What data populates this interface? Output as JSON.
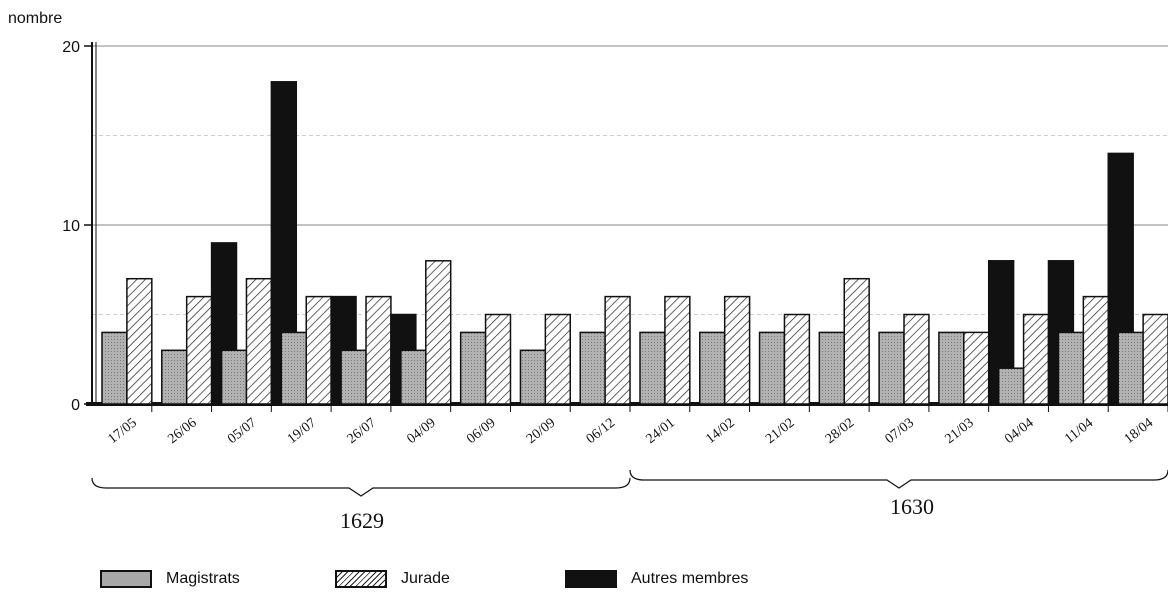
{
  "chart_data": {
    "type": "bar",
    "ylabel": "nombre",
    "ylim": [
      0,
      20
    ],
    "yticks": [
      "0",
      "10",
      "20"
    ],
    "categories": [
      "17/05",
      "26/06",
      "05/07",
      "19/07",
      "26/07",
      "04/09",
      "06/09",
      "20/09",
      "06/12",
      "24/01",
      "14/02",
      "21/02",
      "28/02",
      "07/03",
      "21/03",
      "04/04",
      "11/04",
      "18/04"
    ],
    "year_groups": [
      {
        "label": "1629",
        "from": 0,
        "to": 8
      },
      {
        "label": "1630",
        "from": 9,
        "to": 17
      }
    ],
    "series": [
      {
        "name": "Magistrats",
        "values": [
          4,
          3,
          3,
          4,
          3,
          3,
          4,
          3,
          4,
          4,
          4,
          4,
          4,
          4,
          4,
          2,
          4,
          4
        ]
      },
      {
        "name": "Jurade",
        "values": [
          7,
          6,
          7,
          6,
          6,
          8,
          5,
          5,
          6,
          6,
          6,
          5,
          7,
          5,
          4,
          5,
          6,
          5
        ]
      },
      {
        "name": "Autres membres",
        "values": [
          0,
          9,
          18,
          6,
          5,
          0,
          0,
          0,
          0,
          0,
          0,
          0,
          0,
          0,
          8,
          8,
          14,
          0
        ]
      }
    ],
    "legend_position": "bottom",
    "grid": true
  },
  "colors": {
    "magistrats": "#a8a8a8",
    "jurade_hatch": "#222222",
    "autres": "#111111",
    "grid": "#cfcfcf"
  }
}
